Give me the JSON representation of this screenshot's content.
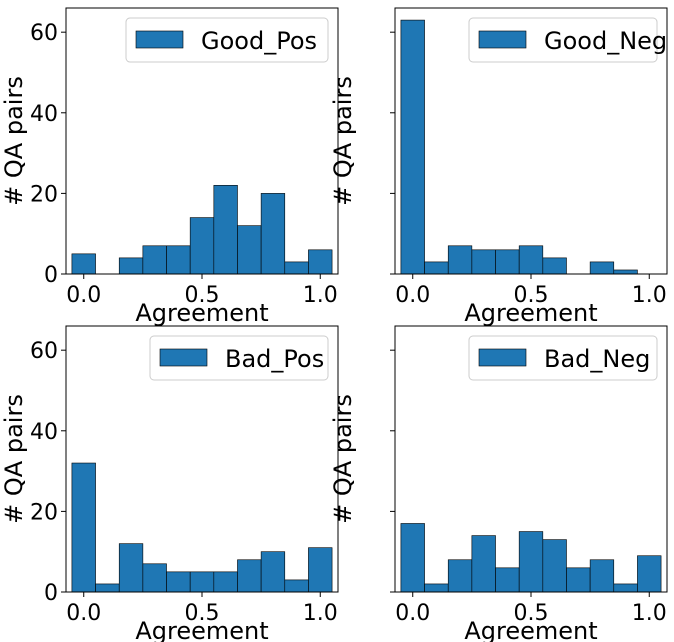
{
  "chart_data": [
    {
      "type": "bar",
      "subtype": "histogram",
      "legend": "Good_Pos",
      "legend_position": "upper right",
      "xlabel": "Agreement",
      "ylabel": "# QA pairs",
      "xlim": [
        -0.075,
        1.075
      ],
      "ylim": [
        0,
        66
      ],
      "xticks": [
        "0.0",
        "0.5",
        "1.0"
      ],
      "yticks": [
        "0",
        "20",
        "40",
        "60"
      ],
      "show_yticklabels": true,
      "bin_width": 0.1,
      "bin_centers": [
        0.0,
        0.1,
        0.2,
        0.3,
        0.4,
        0.5,
        0.6,
        0.7,
        0.8,
        0.9,
        1.0
      ],
      "values": [
        5,
        0,
        4,
        7,
        7,
        14,
        22,
        12,
        20,
        3,
        6
      ]
    },
    {
      "type": "bar",
      "subtype": "histogram",
      "legend": "Good_Neg",
      "legend_position": "upper right",
      "xlabel": "Agreement",
      "ylabel": "# QA pairs",
      "xlim": [
        -0.075,
        1.075
      ],
      "ylim": [
        0,
        66
      ],
      "xticks": [
        "0.0",
        "0.5",
        "1.0"
      ],
      "yticks": [
        "0",
        "20",
        "40",
        "60"
      ],
      "show_yticklabels": false,
      "bin_width": 0.1,
      "bin_centers": [
        0.0,
        0.1,
        0.2,
        0.3,
        0.4,
        0.5,
        0.6,
        0.7,
        0.8,
        0.9,
        1.0
      ],
      "values": [
        63,
        3,
        7,
        6,
        6,
        7,
        4,
        0,
        3,
        1,
        0
      ]
    },
    {
      "type": "bar",
      "subtype": "histogram",
      "legend": "Bad_Pos",
      "legend_position": "upper right",
      "xlabel": "Agreement",
      "ylabel": "# QA pairs",
      "xlim": [
        -0.075,
        1.075
      ],
      "ylim": [
        0,
        66
      ],
      "xticks": [
        "0.0",
        "0.5",
        "1.0"
      ],
      "yticks": [
        "0",
        "20",
        "40",
        "60"
      ],
      "show_yticklabels": true,
      "bin_width": 0.1,
      "bin_centers": [
        0.0,
        0.1,
        0.2,
        0.3,
        0.4,
        0.5,
        0.6,
        0.7,
        0.8,
        0.9,
        1.0
      ],
      "values": [
        32,
        2,
        12,
        7,
        5,
        5,
        5,
        8,
        10,
        3,
        11
      ]
    },
    {
      "type": "bar",
      "subtype": "histogram",
      "legend": "Bad_Neg",
      "legend_position": "upper right",
      "xlabel": "Agreement",
      "ylabel": "# QA pairs",
      "xlim": [
        -0.075,
        1.075
      ],
      "ylim": [
        0,
        66
      ],
      "xticks": [
        "0.0",
        "0.5",
        "1.0"
      ],
      "yticks": [
        "0",
        "20",
        "40",
        "60"
      ],
      "show_yticklabels": false,
      "bin_width": 0.1,
      "bin_centers": [
        0.0,
        0.1,
        0.2,
        0.3,
        0.4,
        0.5,
        0.6,
        0.7,
        0.8,
        0.9,
        1.0
      ],
      "values": [
        17,
        2,
        8,
        14,
        6,
        15,
        13,
        6,
        8,
        2,
        9
      ]
    }
  ],
  "colors": {
    "bar_fill": "#1f77b4",
    "bar_edge": "#000000",
    "axis": "#000000",
    "legend_border": "#cccccc"
  }
}
